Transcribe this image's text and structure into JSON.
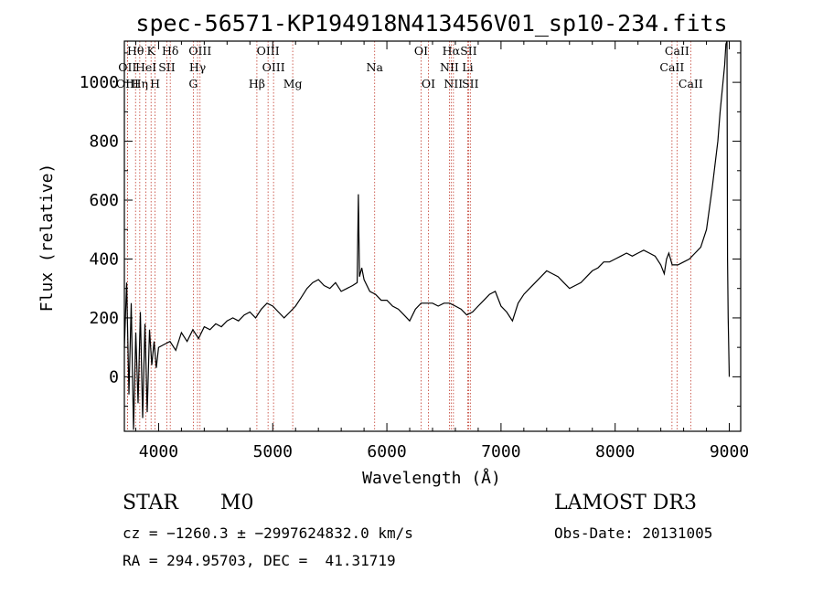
{
  "title": "spec-56571-KP194918N413456V01_sp10-234.fits",
  "info": {
    "class": "STAR",
    "subclass": "M0",
    "survey": "LAMOST DR3",
    "cz": "cz = −1260.3 ± −2997624832.0 km/s",
    "obs_date": "Obs-Date: 20131005",
    "radec": "RA = 294.95703, DEC =  41.31719"
  },
  "chart_data": {
    "type": "line",
    "title": "spec-56571-KP194918N413456V01_sp10-234.fits",
    "xlabel": "Wavelength (Å)",
    "ylabel": "Flux (relative)",
    "xlim": [
      3700,
      9100
    ],
    "ylim": [
      -185,
      1140
    ],
    "xticks": [
      4000,
      5000,
      6000,
      7000,
      8000,
      9000
    ],
    "yticks": [
      0,
      200,
      400,
      600,
      800,
      1000
    ],
    "grid": false,
    "line_color": "#000000",
    "marker_color": "#c0392b",
    "series": [
      {
        "x": [
          3700,
          3720,
          3740,
          3760,
          3780,
          3800,
          3820,
          3840,
          3860,
          3880,
          3900,
          3920,
          3940,
          3960,
          3980,
          4000,
          4050,
          4100,
          4150,
          4200,
          4250,
          4300,
          4350,
          4400,
          4450,
          4500,
          4550,
          4600,
          4650,
          4700,
          4750,
          4800,
          4850,
          4900,
          4950,
          5000,
          5050,
          5100,
          5150,
          5200,
          5250,
          5300,
          5350,
          5400,
          5450,
          5500,
          5550,
          5600,
          5650,
          5700,
          5740,
          5750,
          5760,
          5780,
          5800,
          5850,
          5900,
          5950,
          6000,
          6050,
          6100,
          6150,
          6200,
          6250,
          6300,
          6350,
          6400,
          6450,
          6500,
          6550,
          6600,
          6650,
          6700,
          6750,
          6800,
          6850,
          6900,
          6950,
          7000,
          7050,
          7100,
          7150,
          7200,
          7250,
          7300,
          7350,
          7400,
          7450,
          7500,
          7550,
          7600,
          7650,
          7700,
          7750,
          7800,
          7850,
          7900,
          7950,
          8000,
          8050,
          8100,
          8150,
          8200,
          8250,
          8300,
          8350,
          8400,
          8430,
          8450,
          8470,
          8500,
          8550,
          8600,
          8650,
          8700,
          8750,
          8800,
          8850,
          8900,
          8920,
          8940,
          8960,
          8970,
          8980,
          8985,
          8990,
          9000
        ],
        "y": [
          100,
          320,
          -60,
          250,
          -180,
          150,
          -90,
          220,
          -140,
          180,
          -120,
          160,
          40,
          120,
          30,
          100,
          110,
          120,
          90,
          150,
          120,
          160,
          130,
          170,
          160,
          180,
          170,
          190,
          200,
          190,
          210,
          220,
          200,
          230,
          250,
          240,
          220,
          200,
          220,
          240,
          270,
          300,
          320,
          330,
          310,
          300,
          320,
          290,
          300,
          310,
          320,
          620,
          340,
          370,
          330,
          290,
          280,
          260,
          260,
          240,
          230,
          210,
          190,
          230,
          250,
          250,
          250,
          240,
          250,
          250,
          240,
          230,
          210,
          220,
          240,
          260,
          280,
          290,
          240,
          220,
          190,
          250,
          280,
          300,
          320,
          340,
          360,
          350,
          340,
          320,
          300,
          310,
          320,
          340,
          360,
          370,
          390,
          390,
          400,
          410,
          420,
          410,
          420,
          430,
          420,
          410,
          380,
          350,
          400,
          420,
          380,
          380,
          390,
          400,
          420,
          440,
          500,
          640,
          800,
          900,
          980,
          1060,
          1130,
          1140,
          400,
          200,
          0
        ]
      }
    ],
    "lines": [
      {
        "name": "Hθ",
        "x": 3798,
        "row": 0
      },
      {
        "name": "OII",
        "x": 3727,
        "row": 1
      },
      {
        "name": "OIII",
        "x": 3727,
        "row": 2
      },
      {
        "name": "K",
        "x": 3934,
        "row": 0
      },
      {
        "name": "HeI",
        "x": 3889,
        "row": 1
      },
      {
        "name": "Hη",
        "x": 3835,
        "row": 2
      },
      {
        "name": "SII",
        "x": 4072,
        "row": 1
      },
      {
        "name": "H",
        "x": 3969,
        "row": 2
      },
      {
        "name": "Hδ",
        "x": 4102,
        "row": 0
      },
      {
        "name": "OIII",
        "x": 4363,
        "row": 0
      },
      {
        "name": "Hγ",
        "x": 4341,
        "row": 1
      },
      {
        "name": "G",
        "x": 4304,
        "row": 2
      },
      {
        "name": "OIII",
        "x": 4959,
        "row": 0
      },
      {
        "name": "OIII",
        "x": 5007,
        "row": 1
      },
      {
        "name": "Hβ",
        "x": 4861,
        "row": 2
      },
      {
        "name": "Mg",
        "x": 5175,
        "row": 2
      },
      {
        "name": "Na",
        "x": 5893,
        "row": 1
      },
      {
        "name": "OI",
        "x": 6300,
        "row": 0
      },
      {
        "name": "OI",
        "x": 6364,
        "row": 2
      },
      {
        "name": "Hα",
        "x": 6563,
        "row": 0
      },
      {
        "name": "SII",
        "x": 6716,
        "row": 0
      },
      {
        "name": "NII",
        "x": 6548,
        "row": 1
      },
      {
        "name": "Li",
        "x": 6708,
        "row": 1
      },
      {
        "name": "NII",
        "x": 6583,
        "row": 2
      },
      {
        "name": "SII",
        "x": 6731,
        "row": 2
      },
      {
        "name": "CaII",
        "x": 8542,
        "row": 0
      },
      {
        "name": "CaII",
        "x": 8498,
        "row": 1
      },
      {
        "name": "CaII",
        "x": 8662,
        "row": 2
      }
    ]
  }
}
